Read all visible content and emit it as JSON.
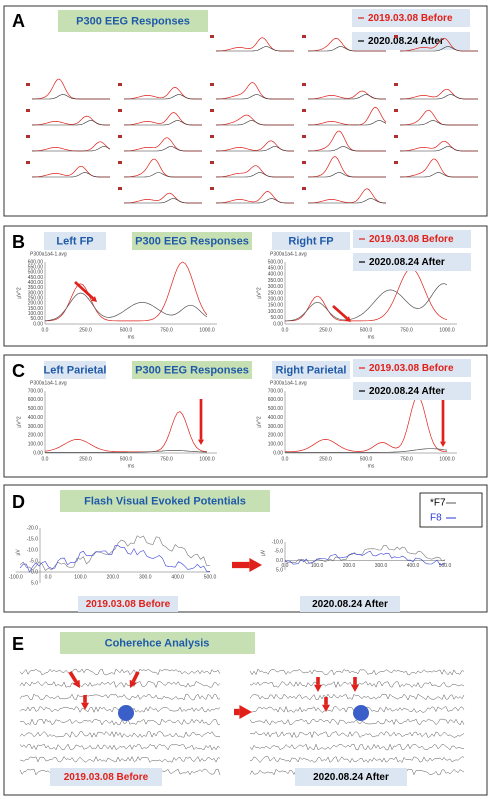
{
  "panel_a": {
    "letter": "A",
    "title": "P300 EEG Responses",
    "legend": [
      "2019.03.08 Before",
      "2020.08.24 After"
    ]
  },
  "panel_b": {
    "letter": "B",
    "title": "P300 EEG Responses",
    "legend": [
      "2019.03.08 Before",
      "2020.08.24 After"
    ],
    "plots": [
      {
        "label": "Left FP",
        "file": "P300a1a4-1.avg",
        "y_unit": "µV^2",
        "x_unit": "ms",
        "yticks": [
          "600.00",
          "550.00",
          "500.00",
          "450.00",
          "400.00",
          "350.00",
          "300.00",
          "250.00",
          "200.00",
          "150.00",
          "100.00",
          "50.00",
          "0.00"
        ],
        "xticks": [
          "0.0",
          "250.0",
          "500.0",
          "750.0",
          "1000.0"
        ]
      },
      {
        "label": "Right FP",
        "file": "P300a1a4-1.avg",
        "y_unit": "µV^2",
        "x_unit": "ms",
        "yticks": [
          "500.00",
          "450.00",
          "400.00",
          "350.00",
          "300.00",
          "250.00",
          "200.00",
          "150.00",
          "100.00",
          "50.00",
          "0.00"
        ],
        "xticks": [
          "0.0",
          "250.0",
          "500.0",
          "750.0",
          "1000.0"
        ]
      }
    ]
  },
  "panel_c": {
    "letter": "C",
    "title": "P300 EEG Responses",
    "legend": [
      "2019.03.08 Before",
      "2020.08.24 After"
    ],
    "plots": [
      {
        "label": "Left Parietal",
        "file": "P300a1a4-1.avg",
        "y_unit": "µV^2",
        "x_unit": "ms",
        "yticks": [
          "700.00",
          "600.00",
          "500.00",
          "400.00",
          "300.00",
          "200.00",
          "100.00",
          "0.00"
        ],
        "xticks": [
          "0.0",
          "250.0",
          "500.0",
          "750.0",
          "1000.0"
        ]
      },
      {
        "label": "Right Parietal",
        "file": "P300a1a4-1.avg",
        "y_unit": "µV^2",
        "x_unit": "ms",
        "yticks": [
          "700.00",
          "600.00",
          "500.00",
          "400.00",
          "300.00",
          "200.00",
          "100.00",
          "0.00"
        ],
        "xticks": [
          "0.0",
          "250.0",
          "500.0",
          "750.0",
          "1000.0"
        ]
      }
    ]
  },
  "panel_d": {
    "letter": "D",
    "title": "Flash Visual Evoked Potentials",
    "legend": [
      "*F7",
      "F8"
    ],
    "dates": [
      "2019.03.08 Before",
      "2020.08.24 After"
    ],
    "plots": [
      {
        "y_unit": "µV",
        "yticks": [
          "-20.0",
          "-15.0",
          "-10.0",
          "-5.0",
          "0.0",
          "5.0"
        ],
        "xticks": [
          "-100.0",
          "0.0",
          "100.0",
          "200.0",
          "300.0",
          "400.0",
          "500.0"
        ]
      },
      {
        "y_unit": "µV",
        "yticks": [
          "-10.0",
          "-5.0",
          "0.0",
          "5.0"
        ],
        "xticks": [
          "0.0",
          "100.0",
          "200.0",
          "300.0",
          "400.0",
          "500.0"
        ]
      }
    ]
  },
  "panel_e": {
    "letter": "E",
    "title": "Coherehce Analysis",
    "dates": [
      "2019.03.08 Before",
      "2020.08.24 After"
    ]
  }
}
